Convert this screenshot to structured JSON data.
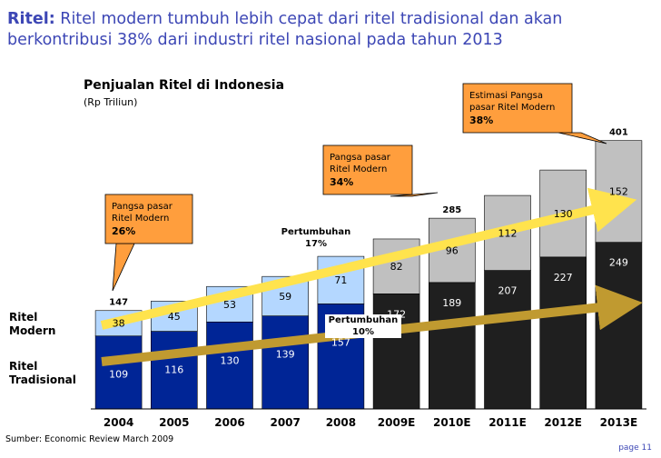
{
  "headline": {
    "keyword": "Ritel:",
    "text": " Ritel modern tumbuh lebih cepat dari ritel tradisional dan akan berkontribusi 38% dari industri ritel nasional pada tahun 2013"
  },
  "chart_data": {
    "type": "bar",
    "title": "Penjualan Ritel di Indonesia",
    "unit": "(Rp Triliun)",
    "categories": [
      "2004",
      "2005",
      "2006",
      "2007",
      "2008",
      "2009E",
      "2010E",
      "2011E",
      "2012E",
      "2013E"
    ],
    "series": [
      {
        "name": "Ritel Tradisional",
        "values": [
          109,
          116,
          130,
          139,
          157,
          172,
          189,
          207,
          227,
          249
        ]
      },
      {
        "name": "Ritel Modern",
        "values": [
          38,
          45,
          53,
          59,
          71,
          82,
          96,
          112,
          130,
          152
        ]
      }
    ],
    "totals": [
      {
        "index": 0,
        "label": "147"
      },
      {
        "index": 6,
        "label": "285"
      },
      {
        "index": 9,
        "label": "401"
      }
    ],
    "colors": {
      "actual_modern": "#b4d7ff",
      "actual_traditional": "#002596",
      "forecast_modern": "#c0c0c0",
      "forecast_traditional": "#1f1f1f",
      "modern_arrow": "#ffe34d",
      "traditional_arrow": "#c09a30",
      "callout": "#ff9e3d"
    }
  },
  "row_labels": {
    "modern": "Ritel\nModern",
    "traditional": "Ritel\nTradisional"
  },
  "callouts": [
    {
      "line1": "Pangsa pasar",
      "line2": "Ritel Modern",
      "value": "26%"
    },
    {
      "line1": "Pangsa pasar",
      "line2": "Ritel Modern",
      "value": "34%"
    },
    {
      "line1": "Estimasi Pangsa",
      "line2": "pasar Ritel Modern",
      "value": "38%"
    }
  ],
  "growth_labels": [
    {
      "title": "Pertumbuhan",
      "value": "17%"
    },
    {
      "title": "Pertumbuhan",
      "value": "10%"
    }
  ],
  "source": "Sumber: Economic Review March 2009",
  "page": "page 11"
}
